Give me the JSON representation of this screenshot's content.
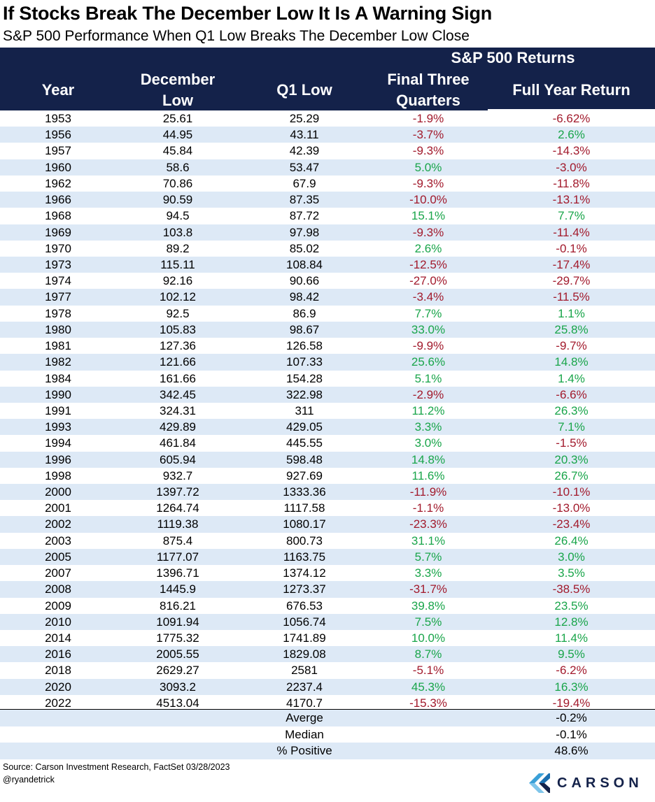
{
  "title": "If Stocks Break The December Low It Is A Warning Sign",
  "subtitle": "S&P 500 Performance When Q1 Low Breaks The December Low Close",
  "headers": {
    "group": "S&P 500 Returns",
    "year": "Year",
    "dec_low_1": "December",
    "dec_low_2": "Low",
    "q1_low": "Q1 Low",
    "ftq_1": "Final Three",
    "ftq_2": "Quarters",
    "fyr": "Full Year Return"
  },
  "colors": {
    "header_bg": "#14224a",
    "positive": "#19a54a",
    "negative": "#a21a2c",
    "stripe": "#dde9f6"
  },
  "rows": [
    {
      "year": "1953",
      "dec": "25.61",
      "q1": "25.29",
      "ftq": "-1.9%",
      "fyr": "-6.62%"
    },
    {
      "year": "1956",
      "dec": "44.95",
      "q1": "43.11",
      "ftq": "-3.7%",
      "fyr": "2.6%"
    },
    {
      "year": "1957",
      "dec": "45.84",
      "q1": "42.39",
      "ftq": "-9.3%",
      "fyr": "-14.3%"
    },
    {
      "year": "1960",
      "dec": "58.6",
      "q1": "53.47",
      "ftq": "5.0%",
      "fyr": "-3.0%"
    },
    {
      "year": "1962",
      "dec": "70.86",
      "q1": "67.9",
      "ftq": "-9.3%",
      "fyr": "-11.8%"
    },
    {
      "year": "1966",
      "dec": "90.59",
      "q1": "87.35",
      "ftq": "-10.0%",
      "fyr": "-13.1%"
    },
    {
      "year": "1968",
      "dec": "94.5",
      "q1": "87.72",
      "ftq": "15.1%",
      "fyr": "7.7%"
    },
    {
      "year": "1969",
      "dec": "103.8",
      "q1": "97.98",
      "ftq": "-9.3%",
      "fyr": "-11.4%"
    },
    {
      "year": "1970",
      "dec": "89.2",
      "q1": "85.02",
      "ftq": "2.6%",
      "fyr": "-0.1%"
    },
    {
      "year": "1973",
      "dec": "115.11",
      "q1": "108.84",
      "ftq": "-12.5%",
      "fyr": "-17.4%"
    },
    {
      "year": "1974",
      "dec": "92.16",
      "q1": "90.66",
      "ftq": "-27.0%",
      "fyr": "-29.7%"
    },
    {
      "year": "1977",
      "dec": "102.12",
      "q1": "98.42",
      "ftq": "-3.4%",
      "fyr": "-11.5%"
    },
    {
      "year": "1978",
      "dec": "92.5",
      "q1": "86.9",
      "ftq": "7.7%",
      "fyr": "1.1%"
    },
    {
      "year": "1980",
      "dec": "105.83",
      "q1": "98.67",
      "ftq": "33.0%",
      "fyr": "25.8%"
    },
    {
      "year": "1981",
      "dec": "127.36",
      "q1": "126.58",
      "ftq": "-9.9%",
      "fyr": "-9.7%"
    },
    {
      "year": "1982",
      "dec": "121.66",
      "q1": "107.33",
      "ftq": "25.6%",
      "fyr": "14.8%"
    },
    {
      "year": "1984",
      "dec": "161.66",
      "q1": "154.28",
      "ftq": "5.1%",
      "fyr": "1.4%"
    },
    {
      "year": "1990",
      "dec": "342.45",
      "q1": "322.98",
      "ftq": "-2.9%",
      "fyr": "-6.6%"
    },
    {
      "year": "1991",
      "dec": "324.31",
      "q1": "311",
      "ftq": "11.2%",
      "fyr": "26.3%"
    },
    {
      "year": "1993",
      "dec": "429.89",
      "q1": "429.05",
      "ftq": "3.3%",
      "fyr": "7.1%"
    },
    {
      "year": "1994",
      "dec": "461.84",
      "q1": "445.55",
      "ftq": "3.0%",
      "fyr": "-1.5%"
    },
    {
      "year": "1996",
      "dec": "605.94",
      "q1": "598.48",
      "ftq": "14.8%",
      "fyr": "20.3%"
    },
    {
      "year": "1998",
      "dec": "932.7",
      "q1": "927.69",
      "ftq": "11.6%",
      "fyr": "26.7%"
    },
    {
      "year": "2000",
      "dec": "1397.72",
      "q1": "1333.36",
      "ftq": "-11.9%",
      "fyr": "-10.1%"
    },
    {
      "year": "2001",
      "dec": "1264.74",
      "q1": "1117.58",
      "ftq": "-1.1%",
      "fyr": "-13.0%"
    },
    {
      "year": "2002",
      "dec": "1119.38",
      "q1": "1080.17",
      "ftq": "-23.3%",
      "fyr": "-23.4%"
    },
    {
      "year": "2003",
      "dec": "875.4",
      "q1": "800.73",
      "ftq": "31.1%",
      "fyr": "26.4%"
    },
    {
      "year": "2005",
      "dec": "1177.07",
      "q1": "1163.75",
      "ftq": "5.7%",
      "fyr": "3.0%"
    },
    {
      "year": "2007",
      "dec": "1396.71",
      "q1": "1374.12",
      "ftq": "3.3%",
      "fyr": "3.5%"
    },
    {
      "year": "2008",
      "dec": "1445.9",
      "q1": "1273.37",
      "ftq": "-31.7%",
      "fyr": "-38.5%"
    },
    {
      "year": "2009",
      "dec": "816.21",
      "q1": "676.53",
      "ftq": "39.8%",
      "fyr": "23.5%"
    },
    {
      "year": "2010",
      "dec": "1091.94",
      "q1": "1056.74",
      "ftq": "7.5%",
      "fyr": "12.8%"
    },
    {
      "year": "2014",
      "dec": "1775.32",
      "q1": "1741.89",
      "ftq": "10.0%",
      "fyr": "11.4%"
    },
    {
      "year": "2016",
      "dec": "2005.55",
      "q1": "1829.08",
      "ftq": "8.7%",
      "fyr": "9.5%"
    },
    {
      "year": "2018",
      "dec": "2629.27",
      "q1": "2581",
      "ftq": "-5.1%",
      "fyr": "-6.2%"
    },
    {
      "year": "2020",
      "dec": "3093.2",
      "q1": "2237.4",
      "ftq": "45.3%",
      "fyr": "16.3%"
    },
    {
      "year": "2022",
      "dec": "4513.04",
      "q1": "4170.7",
      "ftq": "-15.3%",
      "fyr": "-19.4%"
    }
  ],
  "summary": [
    {
      "label": "Averge",
      "value": "-0.2%"
    },
    {
      "label": "Median",
      "value": "-0.1%"
    },
    {
      "label": "% Positive",
      "value": "48.6%"
    }
  ],
  "footer": {
    "source": "Source: Carson Investment Research, FactSet 03/28/2023",
    "handle": "@ryandetrick",
    "logo_text": "CARSON",
    "logo_icon": "carson-logo-icon"
  }
}
